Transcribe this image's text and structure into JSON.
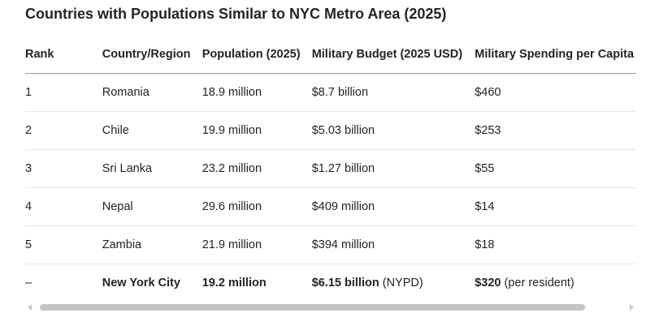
{
  "title": "Countries with Populations Similar to NYC Metro Area (2025)",
  "table": {
    "headers": [
      "Rank",
      "Country/Region",
      "Population (2025)",
      "Military Budget (2025 USD)",
      "Military Spending per Capita"
    ],
    "rows": [
      [
        "1",
        "Romania",
        "18.9 million",
        "$8.7 billion",
        "$460"
      ],
      [
        "2",
        "Chile",
        "19.9 million",
        "$5.03 billion",
        "$253"
      ],
      [
        "3",
        "Sri Lanka",
        "23.2 million",
        "$1.27 billion",
        "$55"
      ],
      [
        "4",
        "Nepal",
        "29.6 million",
        "$409 million",
        "$14"
      ],
      [
        "5",
        "Zambia",
        "21.9 million",
        "$394 million",
        "$18"
      ]
    ],
    "nyc_row": {
      "rank": "–",
      "name": "New York City",
      "population": "19.2 million",
      "budget": "$6.15 billion",
      "budget_note": "(NYPD)",
      "per_capita": "$320",
      "per_capita_note": "(per resident)"
    }
  }
}
